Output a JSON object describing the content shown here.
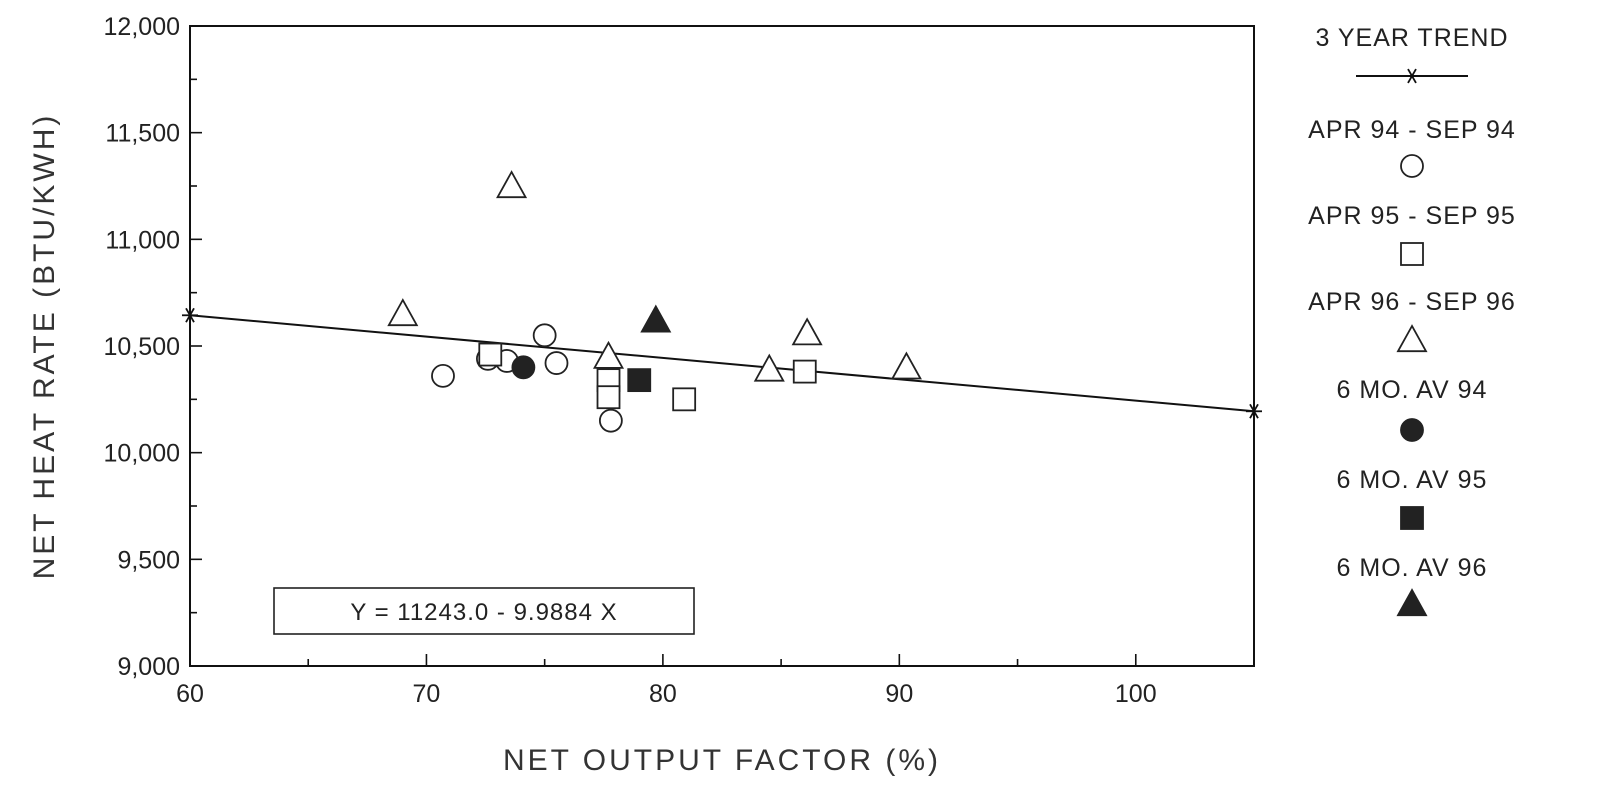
{
  "chart_data": {
    "type": "scatter",
    "xlabel": "NET OUTPUT FACTOR (%)",
    "ylabel": "NET HEAT RATE (BTU/KWH)",
    "xlim": [
      60,
      105
    ],
    "ylim": [
      9000,
      12000
    ],
    "x_ticks": [
      60,
      70,
      80,
      90,
      100
    ],
    "x_tick_labels": [
      "60",
      "70",
      "80",
      "90",
      "100"
    ],
    "y_ticks": [
      9000,
      9500,
      10000,
      10500,
      11000,
      11500,
      12000
    ],
    "y_tick_labels": [
      "9,000",
      "9,500",
      "10,000",
      "10,500",
      "11,000",
      "11,500",
      "12,000"
    ],
    "grid": false,
    "legend_position": "right",
    "equation": "Y = 11243.0 - 9.9884 X",
    "series": [
      {
        "name": "3 YEAR TREND",
        "marker": "line-star",
        "points": [
          [
            60,
            10644
          ],
          [
            105,
            10194
          ]
        ]
      },
      {
        "name": "APR 94 - SEP 94",
        "marker": "circle-open",
        "points": [
          [
            70.7,
            10360
          ],
          [
            72.6,
            10440
          ],
          [
            73.4,
            10430
          ],
          [
            75.0,
            10550
          ],
          [
            75.5,
            10420
          ],
          [
            77.8,
            10150
          ]
        ]
      },
      {
        "name": "APR 95 - SEP 95",
        "marker": "square-open",
        "points": [
          [
            72.7,
            10460
          ],
          [
            77.7,
            10340
          ],
          [
            77.7,
            10260
          ],
          [
            80.9,
            10250
          ],
          [
            86.0,
            10380
          ]
        ]
      },
      {
        "name": "APR 96 - SEP 96",
        "marker": "triangle-open",
        "points": [
          [
            69.0,
            10650
          ],
          [
            73.6,
            11250
          ],
          [
            77.7,
            10450
          ],
          [
            84.5,
            10390
          ],
          [
            86.1,
            10560
          ],
          [
            90.3,
            10400
          ]
        ]
      },
      {
        "name": "6 MO. AV 94",
        "marker": "circle-filled",
        "points": [
          [
            74.1,
            10400
          ]
        ]
      },
      {
        "name": "6 MO. AV 95",
        "marker": "square-filled",
        "points": [
          [
            79.0,
            10340
          ]
        ]
      },
      {
        "name": "6 MO. AV 96",
        "marker": "triangle-filled",
        "points": [
          [
            79.7,
            10620
          ]
        ]
      }
    ]
  }
}
